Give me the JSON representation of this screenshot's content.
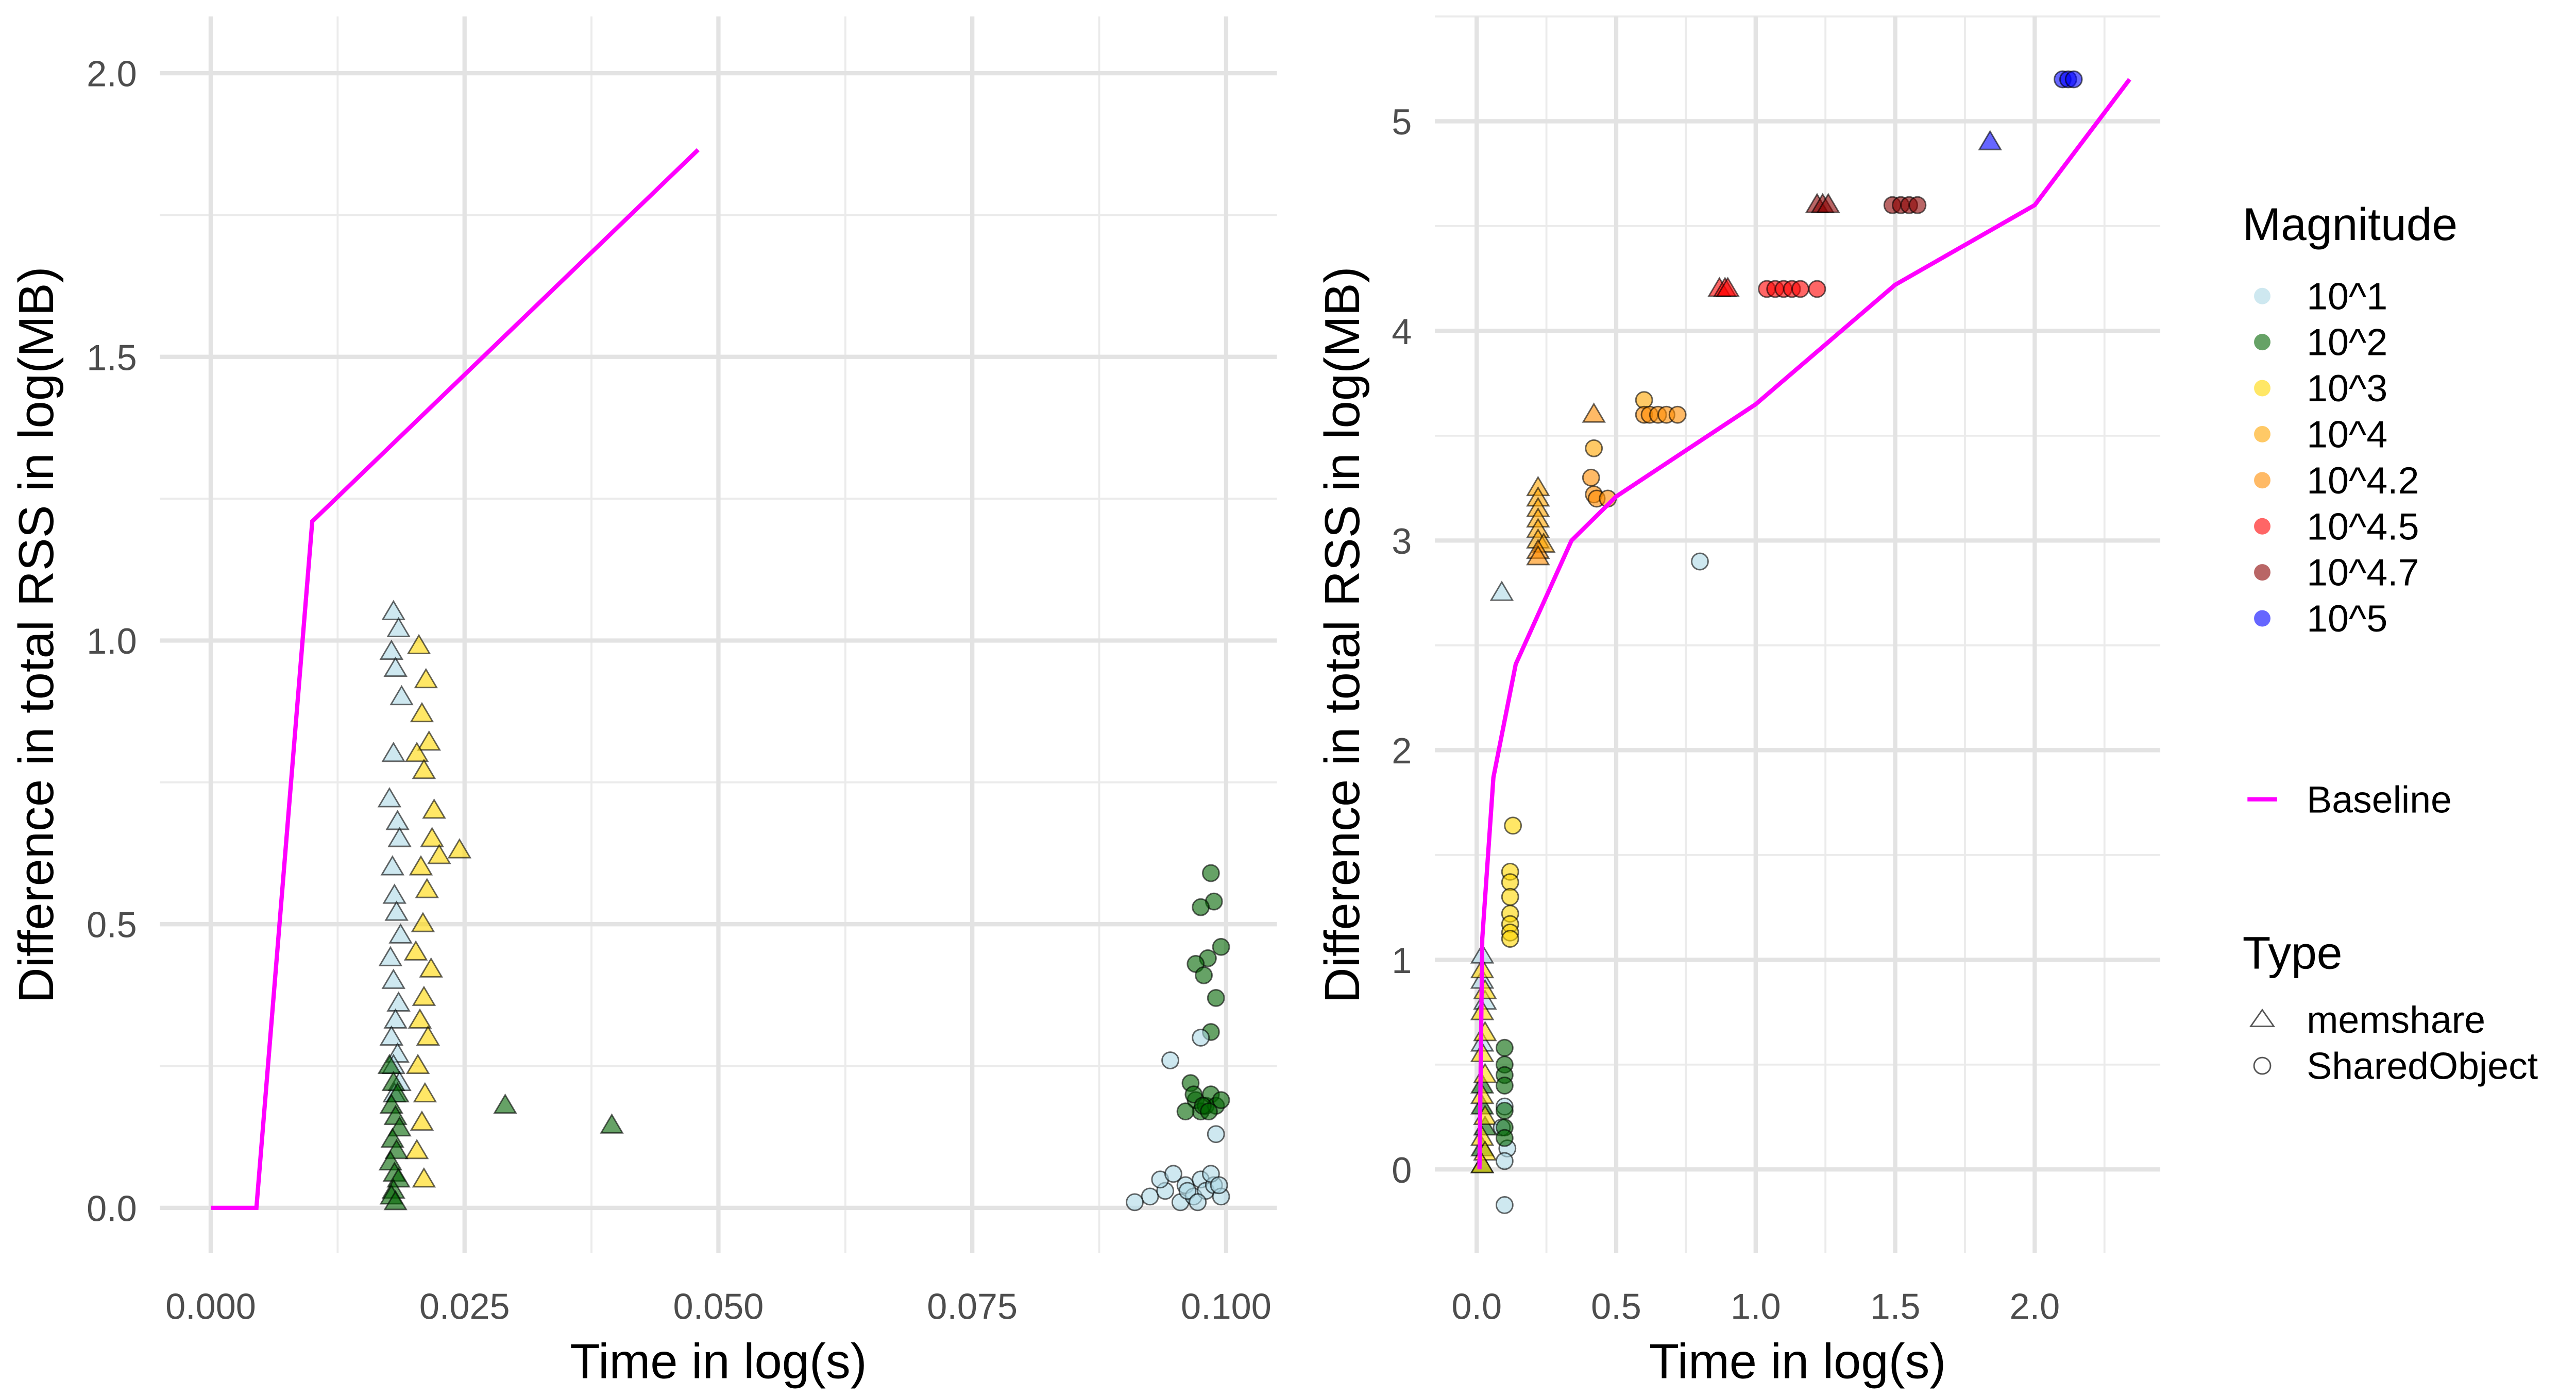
{
  "chart_data": [
    {
      "type": "scatter",
      "xlabel": "Time in log(s)",
      "ylabel": "Difference in total RSS in log(MB)",
      "xlim": [
        -0.005,
        0.105
      ],
      "ylim": [
        -0.08,
        2.1
      ],
      "xticks": [
        "0.000",
        "0.025",
        "0.050",
        "0.075",
        "0.100"
      ],
      "xtick_values": [
        0,
        0.025,
        0.05,
        0.075,
        0.1
      ],
      "yticks": [
        "0.0",
        "0.5",
        "1.0",
        "1.5",
        "2.0"
      ],
      "ytick_values": [
        0,
        0.5,
        1.0,
        1.5,
        2.0
      ],
      "grid": true,
      "baseline": {
        "name": "Baseline",
        "x": [
          0,
          0.0045,
          0.01,
          0.048
        ],
        "y": [
          0,
          0,
          1.21,
          1.865
        ]
      },
      "groups": [
        {
          "magnitude": "10^1",
          "type": "memshare",
          "x": [
            0.018,
            0.0185,
            0.0178,
            0.0182,
            0.0188,
            0.018,
            0.0176,
            0.0184,
            0.0186,
            0.0179,
            0.0181,
            0.0183,
            0.0187,
            0.0177,
            0.018,
            0.0185,
            0.0182,
            0.0178,
            0.0184,
            0.018,
            0.0186,
            0.0181
          ],
          "y": [
            1.05,
            1.02,
            0.98,
            0.95,
            0.9,
            0.8,
            0.72,
            0.68,
            0.65,
            0.6,
            0.55,
            0.52,
            0.48,
            0.44,
            0.4,
            0.36,
            0.33,
            0.3,
            0.27,
            0.25,
            0.22,
            0.2
          ]
        },
        {
          "magnitude": "10^3",
          "type": "memshare",
          "x": [
            0.0205,
            0.0212,
            0.0208,
            0.0215,
            0.0203,
            0.021,
            0.022,
            0.0218,
            0.0225,
            0.0207,
            0.0213,
            0.0209,
            0.0202,
            0.0217,
            0.0245,
            0.021,
            0.0206,
            0.0214,
            0.0204,
            0.0211,
            0.0208,
            0.0203,
            0.021
          ],
          "y": [
            0.99,
            0.93,
            0.87,
            0.82,
            0.8,
            0.77,
            0.7,
            0.65,
            0.62,
            0.6,
            0.56,
            0.5,
            0.45,
            0.42,
            0.63,
            0.37,
            0.33,
            0.3,
            0.25,
            0.2,
            0.15,
            0.1,
            0.05
          ]
        },
        {
          "magnitude": "10^2",
          "type": "memshare",
          "x": [
            0.0176,
            0.018,
            0.0184,
            0.0178,
            0.0182,
            0.0186,
            0.0179,
            0.0183,
            0.0177,
            0.0181,
            0.0185,
            0.018,
            0.0178,
            0.0182,
            0.029,
            0.0395
          ],
          "y": [
            0.25,
            0.22,
            0.2,
            0.18,
            0.16,
            0.14,
            0.12,
            0.1,
            0.08,
            0.06,
            0.05,
            0.03,
            0.02,
            0.01,
            0.18,
            0.145
          ]
        },
        {
          "magnitude": "10^2",
          "type": "SharedObject",
          "x": [
            0.0985,
            0.0988,
            0.0975,
            0.0995,
            0.0982,
            0.097,
            0.099,
            0.0978,
            0.0985,
            0.0965,
            0.097,
            0.0975,
            0.098,
            0.0985,
            0.099,
            0.0995,
            0.096,
            0.0968,
            0.0977,
            0.0983
          ],
          "y": [
            0.59,
            0.54,
            0.53,
            0.46,
            0.44,
            0.43,
            0.37,
            0.41,
            0.31,
            0.22,
            0.19,
            0.17,
            0.18,
            0.2,
            0.18,
            0.19,
            0.17,
            0.2,
            0.18,
            0.17
          ]
        },
        {
          "magnitude": "10^1",
          "type": "SharedObject",
          "x": [
            0.0925,
            0.094,
            0.0955,
            0.096,
            0.0968,
            0.0975,
            0.098,
            0.0988,
            0.0995,
            0.091,
            0.0935,
            0.0948,
            0.0962,
            0.0972,
            0.0985,
            0.0993,
            0.0945,
            0.0975,
            0.099
          ],
          "y": [
            0.02,
            0.03,
            0.01,
            0.04,
            0.02,
            0.05,
            0.03,
            0.04,
            0.02,
            0.01,
            0.05,
            0.06,
            0.03,
            0.01,
            0.06,
            0.04,
            0.26,
            0.3,
            0.13
          ]
        }
      ]
    },
    {
      "type": "scatter",
      "xlabel": "Time in log(s)",
      "ylabel": "Difference in total RSS in log(MB)",
      "xlim": [
        -0.15,
        2.45
      ],
      "ylim": [
        -0.4,
        5.5
      ],
      "xticks": [
        "0.0",
        "0.5",
        "1.0",
        "1.5",
        "2.0"
      ],
      "xtick_values": [
        0,
        0.5,
        1.0,
        1.5,
        2.0
      ],
      "yticks": [
        "0",
        "1",
        "2",
        "3",
        "4",
        "5"
      ],
      "ytick_values": [
        0,
        1,
        2,
        3,
        4,
        5
      ],
      "grid": true,
      "baseline": {
        "name": "Baseline",
        "x": [
          0.01,
          0.02,
          0.06,
          0.14,
          0.34,
          0.5,
          1.0,
          1.5,
          2.0,
          2.34
        ],
        "y": [
          0,
          1.1,
          1.87,
          2.41,
          3.0,
          3.21,
          3.65,
          4.22,
          4.6,
          5.2
        ]
      },
      "groups": [
        {
          "magnitude": "10^1",
          "type": "memshare",
          "x": [
            0.02,
            0.02,
            0.03,
            0.02,
            0.09
          ],
          "y": [
            1.02,
            0.9,
            0.8,
            0.6,
            2.75
          ]
        },
        {
          "magnitude": "10^2",
          "type": "memshare",
          "x": [
            0.02,
            0.02,
            0.03,
            0.02,
            0.02
          ],
          "y": [
            0.4,
            0.3,
            0.2,
            0.1,
            0.02
          ]
        },
        {
          "magnitude": "10^3",
          "type": "memshare",
          "x": [
            0.02,
            0.03,
            0.02,
            0.03,
            0.02,
            0.03,
            0.02,
            0.03,
            0.02,
            0.03,
            0.02
          ],
          "y": [
            0.95,
            0.85,
            0.75,
            0.65,
            0.55,
            0.45,
            0.35,
            0.25,
            0.15,
            0.08,
            0.02
          ]
        },
        {
          "magnitude": "10^1",
          "type": "SharedObject",
          "x": [
            0.1,
            0.09,
            0.11,
            0.1,
            0.1,
            0.8
          ],
          "y": [
            0.3,
            0.2,
            0.1,
            0.04,
            -0.17,
            2.9
          ]
        },
        {
          "magnitude": "10^2",
          "type": "SharedObject",
          "x": [
            0.1,
            0.1,
            0.1,
            0.1,
            0.1,
            0.1,
            0.1
          ],
          "y": [
            0.58,
            0.5,
            0.45,
            0.4,
            0.28,
            0.2,
            0.15
          ]
        },
        {
          "magnitude": "10^3",
          "type": "SharedObject",
          "x": [
            0.13,
            0.12,
            0.12,
            0.12,
            0.12,
            0.12,
            0.12,
            0.12
          ],
          "y": [
            1.64,
            1.42,
            1.37,
            1.3,
            1.22,
            1.17,
            1.13,
            1.1
          ]
        },
        {
          "magnitude": "10^4",
          "type": "memshare",
          "x": [
            0.22,
            0.22,
            0.22,
            0.22,
            0.22,
            0.22,
            0.24
          ],
          "y": [
            3.25,
            3.2,
            3.15,
            3.1,
            3.05,
            3.0,
            2.98
          ]
        },
        {
          "magnitude": "10^4.2",
          "type": "memshare",
          "x": [
            0.22,
            0.22,
            0.42
          ],
          "y": [
            2.95,
            2.92,
            3.6
          ]
        },
        {
          "magnitude": "10^4",
          "type": "SharedObject",
          "x": [
            0.42,
            0.6
          ],
          "y": [
            3.44,
            3.67
          ]
        },
        {
          "magnitude": "10^4.2",
          "type": "SharedObject",
          "x": [
            0.41,
            0.42,
            0.43,
            0.47,
            0.6,
            0.62,
            0.65,
            0.68,
            0.72
          ],
          "y": [
            3.3,
            3.22,
            3.2,
            3.2,
            3.6,
            3.6,
            3.6,
            3.6,
            3.6
          ]
        },
        {
          "magnitude": "10^4.5",
          "type": "memshare",
          "x": [
            0.87,
            0.89,
            0.9
          ],
          "y": [
            4.2,
            4.2,
            4.2
          ]
        },
        {
          "magnitude": "10^4.5",
          "type": "SharedObject",
          "x": [
            1.04,
            1.07,
            1.1,
            1.13,
            1.16,
            1.22
          ],
          "y": [
            4.2,
            4.2,
            4.2,
            4.2,
            4.2,
            4.2
          ]
        },
        {
          "magnitude": "10^4.7",
          "type": "memshare",
          "x": [
            1.22,
            1.24,
            1.26
          ],
          "y": [
            4.6,
            4.6,
            4.6
          ]
        },
        {
          "magnitude": "10^4.7",
          "type": "SharedObject",
          "x": [
            1.49,
            1.52,
            1.55,
            1.58
          ],
          "y": [
            4.6,
            4.6,
            4.6,
            4.6
          ]
        },
        {
          "magnitude": "10^5",
          "type": "memshare",
          "x": [
            1.84
          ],
          "y": [
            4.9
          ]
        },
        {
          "magnitude": "10^5",
          "type": "SharedObject",
          "x": [
            2.1,
            2.12,
            2.14
          ],
          "y": [
            5.2,
            5.2,
            5.2
          ]
        }
      ]
    }
  ],
  "legend": {
    "magnitude_title": "Magnitude",
    "magnitudes": [
      {
        "label": "10^1",
        "color": "#add8e6"
      },
      {
        "label": "10^2",
        "color": "#006400"
      },
      {
        "label": "10^3",
        "color": "#ffd700"
      },
      {
        "label": "10^4",
        "color": "#ffa500"
      },
      {
        "label": "10^4.2",
        "color": "#ff8c00"
      },
      {
        "label": "10^4.5",
        "color": "#ff0000"
      },
      {
        "label": "10^4.7",
        "color": "#8b0000"
      },
      {
        "label": "10^5",
        "color": "#0000ff"
      }
    ],
    "baseline_label": "Baseline",
    "baseline_color": "#ff00ff",
    "type_title": "Type",
    "types": [
      {
        "label": "memshare",
        "shape": "triangle"
      },
      {
        "label": "SharedObject",
        "shape": "circle"
      }
    ],
    "position": "right"
  }
}
